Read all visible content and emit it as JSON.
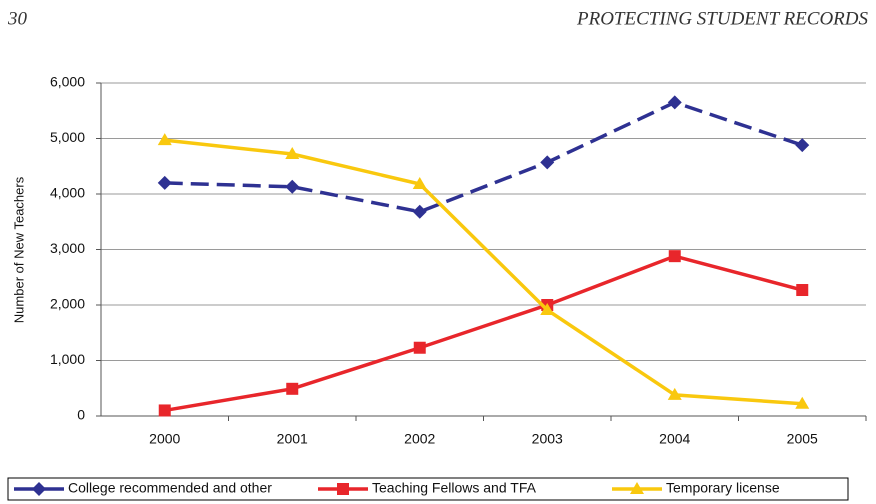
{
  "page_header": {
    "number": "30",
    "title": "PROTECTING STUDENT RECORDS"
  },
  "chart_data": {
    "type": "line",
    "y_label": "Number of New Teachers",
    "categories": [
      "2000",
      "2001",
      "2002",
      "2003",
      "2004",
      "2005"
    ],
    "series": [
      {
        "name": "College recommended and other",
        "color": "#2e3192",
        "line_style": "dashed",
        "marker": "diamond",
        "values": [
          4200,
          4130,
          3680,
          4570,
          5650,
          4880
        ]
      },
      {
        "name": "Teaching Fellows and TFA",
        "color": "#e8262b",
        "line_style": "solid",
        "marker": "square",
        "values": [
          100,
          490,
          1230,
          2000,
          2880,
          2270
        ]
      },
      {
        "name": "Temporary license",
        "color": "#f9c80e",
        "line_style": "solid",
        "marker": "triangle",
        "values": [
          4970,
          4720,
          4180,
          1910,
          380,
          220
        ]
      }
    ],
    "ylim": [
      0,
      6000
    ],
    "yticks": [
      0,
      {
        "value": 1000,
        "label": "1,000"
      },
      {
        "value": 2000,
        "label": "2,000"
      },
      {
        "value": 3000,
        "label": "3,000"
      },
      {
        "value": 4000,
        "label": "4,000"
      },
      {
        "value": 5000,
        "label": "5,000"
      },
      {
        "value": 6000,
        "label": "6,000"
      }
    ],
    "grid": true,
    "legend": "bottom"
  }
}
